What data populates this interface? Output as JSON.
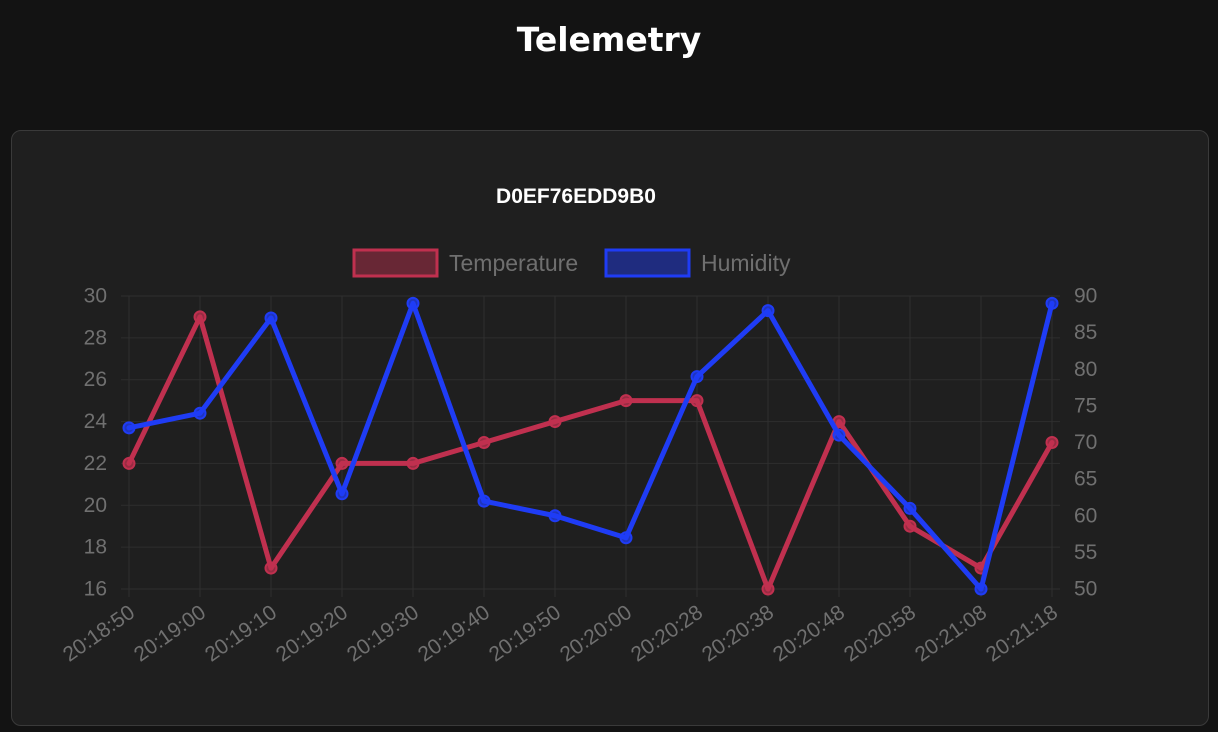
{
  "page": {
    "title": "Telemetry"
  },
  "chart_data": {
    "type": "line",
    "title": "D0EF76EDD9B0",
    "legend_position": "top",
    "grid": true,
    "categories": [
      "20:18:50",
      "20:19:00",
      "20:19:10",
      "20:19:20",
      "20:19:30",
      "20:19:40",
      "20:19:50",
      "20:20:00",
      "20:20:28",
      "20:20:38",
      "20:20:48",
      "20:20:58",
      "20:21:08",
      "20:21:18"
    ],
    "y_left": {
      "min": 16,
      "max": 30,
      "ticks": [
        16,
        18,
        20,
        22,
        24,
        26,
        28,
        30
      ]
    },
    "y_right": {
      "min": 50,
      "max": 90,
      "ticks": [
        50,
        55,
        60,
        65,
        70,
        75,
        80,
        85,
        90
      ]
    },
    "series": [
      {
        "name": "Temperature",
        "axis": "left",
        "color": "#c0304f",
        "values": [
          22,
          29,
          17,
          22,
          22,
          23,
          24,
          25,
          25,
          16,
          24,
          19,
          17,
          23
        ]
      },
      {
        "name": "Humidity",
        "axis": "right",
        "color": "#1f3cf5",
        "values": [
          72,
          74,
          87,
          63,
          89,
          62,
          60,
          57,
          79,
          88,
          71,
          61,
          50,
          89
        ]
      }
    ]
  }
}
